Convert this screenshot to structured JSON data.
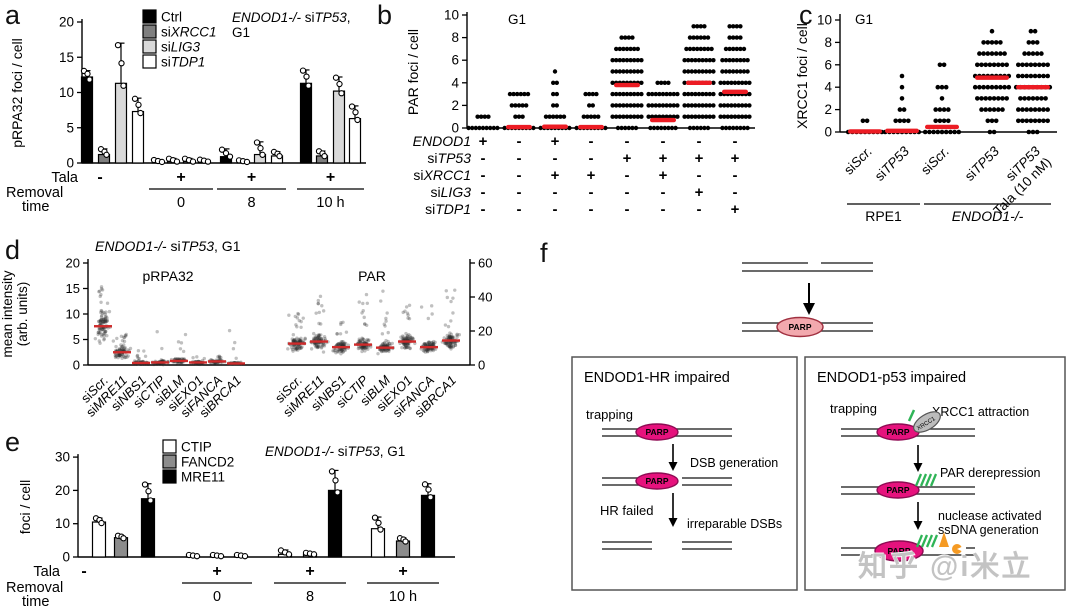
{
  "watermark": "知乎 @i米立",
  "panel_letters": [
    "a",
    "b",
    "c",
    "d",
    "e",
    "f"
  ],
  "colors": {
    "median_red": "#ec1c24",
    "jitter_red": "#cf2b2b"
  },
  "chart_data": [
    {
      "id": "a",
      "type": "bar",
      "ylabel": "pRPA32 foci / cell",
      "ylim": [
        0,
        20
      ],
      "yticks": [
        0,
        5,
        10,
        15,
        20
      ],
      "annotation": [
        "*ENDOD1-/-* si*TP53*,",
        "G1"
      ],
      "legend": [
        {
          "label": "Ctrl",
          "fill": "#000000"
        },
        {
          "label": "si*XRCC1*",
          "fill": "#7f7f7f"
        },
        {
          "label": "si*LIG3*",
          "fill": "#d9d9d9"
        },
        {
          "label": "si*TDP1*",
          "fill": "#ffffff"
        }
      ],
      "tala_label": "Tala",
      "removal_label": [
        "Removal",
        "time"
      ],
      "groups": [
        {
          "tala": "-",
          "time": "",
          "values": [
            12.2,
            1.2,
            11.3,
            7.3
          ],
          "errors": [
            0.9,
            0.8,
            5.7,
            1.9
          ]
        },
        {
          "tala": "+",
          "time": "0",
          "values": [
            0.15,
            0.2,
            0.2,
            0.2
          ],
          "errors": [
            0.3,
            0.45,
            0.45,
            0.3
          ]
        },
        {
          "tala": "+",
          "time": "8",
          "values": [
            0.9,
            0.15,
            1.2,
            1.0
          ],
          "errors": [
            1.1,
            0.25,
            1.8,
            0.6
          ]
        },
        {
          "tala": "+",
          "time": "10 h",
          "values": [
            11.3,
            1.0,
            10.2,
            6.3
          ],
          "errors": [
            1.9,
            0.7,
            2.0,
            1.8
          ]
        }
      ]
    },
    {
      "id": "b",
      "type": "scatter",
      "ylabel": "PAR foci / cell",
      "phase_label": "G1",
      "ylim": [
        0,
        10
      ],
      "yticks": [
        0,
        2,
        4,
        6,
        8,
        10
      ],
      "condition_rows": [
        "*ENDOD1*",
        "si*TP53*",
        "si*XRCC1*",
        "si*LIG3*",
        "si*TDP1*"
      ],
      "columns": [
        {
          "signs": [
            "+",
            "-",
            "-",
            "-",
            "-"
          ],
          "median": null,
          "counts": {
            "0": 12,
            "1": 4
          }
        },
        {
          "signs": [
            "-",
            "-",
            "-",
            "-",
            "-"
          ],
          "median": 0.08,
          "counts": {
            "0": 13,
            "1": 3,
            "2": 5,
            "3": 6
          }
        },
        {
          "signs": [
            "+",
            "-",
            "+",
            "-",
            "-"
          ],
          "median": 0.12,
          "counts": {
            "0": 13,
            "1": 6,
            "2": 2,
            "3": 2,
            "4": 2,
            "5": 1
          }
        },
        {
          "signs": [
            "-",
            "-",
            "+",
            "-",
            "-"
          ],
          "median": 0.08,
          "counts": {
            "0": 13,
            "1": 5,
            "2": 2,
            "3": 4
          }
        },
        {
          "signs": [
            "-",
            "+",
            "-",
            "-",
            "-"
          ],
          "median": 3.8,
          "counts": {
            "0": 6,
            "1": 10,
            "2": 12,
            "3": 12,
            "4": 12,
            "5": 10,
            "6": 10,
            "7": 7,
            "8": 4
          }
        },
        {
          "signs": [
            "-",
            "+",
            "+",
            "-",
            "-"
          ],
          "median": 0.7,
          "counts": {
            "0": 8,
            "1": 12,
            "2": 10,
            "3": 10,
            "4": 4
          }
        },
        {
          "signs": [
            "-",
            "+",
            "-",
            "+",
            "-"
          ],
          "median": 4.0,
          "counts": {
            "0": 6,
            "1": 10,
            "2": 12,
            "3": 12,
            "4": 12,
            "5": 10,
            "6": 10,
            "7": 8,
            "8": 6,
            "9": 4
          }
        },
        {
          "signs": [
            "-",
            "+",
            "-",
            "-",
            "+"
          ],
          "median": 3.2,
          "counts": {
            "0": 8,
            "1": 10,
            "2": 12,
            "3": 12,
            "4": 10,
            "5": 8,
            "6": 8,
            "7": 6,
            "8": 4,
            "9": 4
          }
        }
      ]
    },
    {
      "id": "c",
      "type": "scatter",
      "ylabel": "XRCC1 foci / cell",
      "phase_label": "G1",
      "ylim": [
        0,
        10
      ],
      "yticks": [
        0,
        2,
        4,
        6,
        8,
        10
      ],
      "columns": [
        {
          "label": "si*Scr.*",
          "median": 0.05,
          "counts": {
            "0": 12,
            "1": 2
          }
        },
        {
          "label": "si*TP53*",
          "median": 0.1,
          "counts": {
            "0": 13,
            "1": 4,
            "2": 2,
            "3": 1,
            "4": 1,
            "5": 1
          }
        },
        {
          "label": "si*Scr.*",
          "median": 0.45,
          "counts": {
            "0": 12,
            "1": 4,
            "2": 4,
            "3": 1,
            "4": 3,
            "6": 2
          }
        },
        {
          "label": "si*TP53*",
          "median": 4.85,
          "counts": {
            "0": 2,
            "1": 3,
            "2": 6,
            "3": 8,
            "4": 9,
            "5": 11,
            "6": 8,
            "7": 7,
            "8": 5,
            "9": 1
          }
        },
        {
          "label": "si*TP53*",
          "label2": "Tala (10 nM)",
          "median": 4.0,
          "counts": {
            "0": 3,
            "1": 8,
            "2": 8,
            "3": 7,
            "4": 10,
            "5": 8,
            "6": 8,
            "7": 5,
            "8": 3,
            "9": 2
          }
        }
      ],
      "groups": [
        {
          "label": "RPE1",
          "from": 0,
          "to": 1
        },
        {
          "label": "*ENDOD1-/-*",
          "from": 2,
          "to": 4
        }
      ]
    },
    {
      "id": "d",
      "type": "scatter",
      "title": "*ENDOD1-/-* si*TP53*, G1",
      "ylabel": [
        "mean intensity",
        "(arb. units)"
      ],
      "ylim_left": [
        0,
        20
      ],
      "yticks_left": [
        0,
        5,
        10,
        15,
        20
      ],
      "ylim_right": [
        0,
        60
      ],
      "yticks_right": [
        0,
        20,
        40,
        60
      ],
      "sections": [
        {
          "label": "pRPA32",
          "columns": [
            {
              "label": "si*Scr.*",
              "median": 7.6,
              "lo": 2,
              "hi": 12,
              "max": 15.5,
              "n": 95
            },
            {
              "label": "si*MRE11*",
              "median": 2.5,
              "lo": 0.2,
              "hi": 4.5,
              "max": 6,
              "n": 80
            },
            {
              "label": "si*NBS1*",
              "median": 0.4,
              "lo": 0,
              "hi": 1.2,
              "max": 3,
              "n": 60
            },
            {
              "label": "si*CTIP*",
              "median": 0.5,
              "lo": 0,
              "hi": 1.5,
              "max": 7.5,
              "n": 60
            },
            {
              "label": "si*BLM*",
              "median": 0.8,
              "lo": 0,
              "hi": 2,
              "max": 7,
              "n": 60
            },
            {
              "label": "si*EXO1*",
              "median": 0.5,
              "lo": 0,
              "hi": 1.2,
              "max": 1.6,
              "n": 55
            },
            {
              "label": "si*FANCA*",
              "median": 0.7,
              "lo": 0.1,
              "hi": 1.4,
              "max": 1.8,
              "n": 55
            },
            {
              "label": "si*BRCA1*",
              "median": 0.3,
              "lo": 0,
              "hi": 0.8,
              "max": 8.8,
              "n": 50
            }
          ]
        },
        {
          "label": "PAR",
          "columns": [
            {
              "label": "si*Scr.*",
              "median": 4.2,
              "lo": 2,
              "hi": 7,
              "max": 10.5,
              "n": 95
            },
            {
              "label": "si*MRE11*",
              "median": 4.6,
              "lo": 2.5,
              "hi": 7.5,
              "max": 14,
              "n": 95
            },
            {
              "label": "si*NBS1*",
              "median": 3.5,
              "lo": 2,
              "hi": 6,
              "max": 9,
              "n": 85
            },
            {
              "label": "si*CTIP*",
              "median": 4.0,
              "lo": 2,
              "hi": 6.5,
              "max": 14,
              "n": 85
            },
            {
              "label": "si*BLM*",
              "median": 3.4,
              "lo": 2,
              "hi": 5.5,
              "max": 14.5,
              "n": 85
            },
            {
              "label": "si*EXO1*",
              "median": 4.6,
              "lo": 2.5,
              "hi": 7.5,
              "max": 12,
              "n": 90
            },
            {
              "label": "si*FANCA*",
              "median": 3.5,
              "lo": 2,
              "hi": 5.5,
              "max": 13,
              "n": 85
            },
            {
              "label": "si*BRCA1*",
              "median": 4.8,
              "lo": 2.5,
              "hi": 7.5,
              "max": 15,
              "n": 90
            }
          ]
        }
      ]
    },
    {
      "id": "e",
      "type": "bar",
      "ylabel": "foci / cell",
      "ylim": [
        0,
        30
      ],
      "yticks": [
        0,
        10,
        20,
        30
      ],
      "annotation": [
        "*ENDOD1-/-* si*TP53*, G1"
      ],
      "legend": [
        {
          "label": "CTIP",
          "fill": "#ffffff"
        },
        {
          "label": "FANCD2",
          "fill": "#8c8c8c"
        },
        {
          "label": "MRE11",
          "fill": "#000000"
        }
      ],
      "tala_label": "Tala",
      "removal_label": [
        "Removal",
        "time"
      ],
      "groups": [
        {
          "tala": "-",
          "time": "",
          "values": [
            10.5,
            5.8,
            17.5
          ],
          "errors": [
            1.2,
            0.6,
            4.5
          ]
        },
        {
          "tala": "+",
          "time": "0",
          "values": [
            0.25,
            0.25,
            0.25
          ],
          "errors": [
            0.4,
            0.4,
            0.4
          ]
        },
        {
          "tala": "+",
          "time": "8",
          "values": [
            0.8,
            0.8,
            20
          ],
          "errors": [
            1.3,
            0.5,
            6
          ]
        },
        {
          "tala": "+",
          "time": "10 h",
          "values": [
            8.5,
            4.8,
            18.5
          ],
          "errors": [
            3.5,
            0.9,
            3.5
          ]
        }
      ]
    }
  ],
  "diagram_f": {
    "parp_label": "PARP",
    "xrcc1_label": "XRCC1",
    "left_box": {
      "title": "ENDOD1-HR impaired",
      "trapping": "trapping",
      "dsb": "DSB generation",
      "hr_failed": "HR failed",
      "irreparable": "irreparable DSBs"
    },
    "right_box": {
      "title": "ENDOD1-p53 impaired",
      "trapping": "trapping",
      "xrcc1_attraction": "XRCC1 attraction",
      "par_derepression": "PAR derepression",
      "nuclease_line1": "nuclease activated",
      "nuclease_line2": "ssDNA generation"
    },
    "colors": {
      "parp_fill": "#e6127d",
      "parp_stroke": "#8e0b53",
      "parp_light_fill": "#f2a9ae",
      "parp_light_stroke": "#a03040",
      "green": "#2fb457",
      "orange": "#f59a23",
      "gray_fill": "#bcbcbc",
      "gray_stroke": "#555555"
    }
  }
}
